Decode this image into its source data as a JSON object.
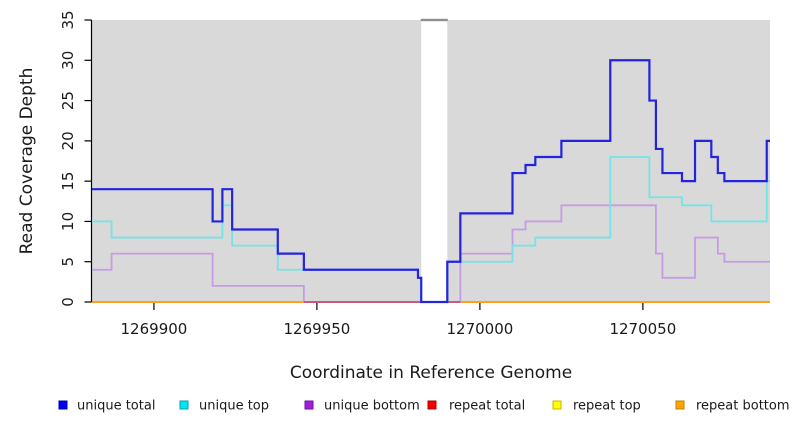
{
  "chart_data": {
    "type": "line",
    "step": true,
    "title": "",
    "xlabel": "Coordinate in Reference Genome",
    "ylabel": "Read Coverage Depth",
    "xlim": [
      1269881,
      1270089
    ],
    "ylim": [
      0,
      35
    ],
    "xticks": [
      1269900,
      1269950,
      1270000,
      1270050
    ],
    "yticks": [
      0,
      5,
      10,
      15,
      20,
      25,
      30,
      35
    ],
    "grid": false,
    "legend_position": "bottom",
    "panel_bg": "#d9d9d9",
    "gap_band": {
      "x0": 1269982,
      "x1": 1269990,
      "fill": "#ffffff",
      "cap_color": "#8f8f8f"
    },
    "series": [
      {
        "name": "unique total",
        "line_color": "#2424dd",
        "legend_fill": "#0000f0",
        "legend_stroke": "#0000a8",
        "line_width": 2.2,
        "points": [
          [
            1269881,
            14
          ],
          [
            1269918,
            10
          ],
          [
            1269921,
            14
          ],
          [
            1269924,
            9
          ],
          [
            1269938,
            6
          ],
          [
            1269946,
            4
          ],
          [
            1269981,
            3
          ],
          [
            1269982,
            0
          ],
          [
            1269990,
            5
          ],
          [
            1269994,
            11
          ],
          [
            1270010,
            16
          ],
          [
            1270014,
            17
          ],
          [
            1270017,
            18
          ],
          [
            1270025,
            20
          ],
          [
            1270040,
            30
          ],
          [
            1270052,
            25
          ],
          [
            1270054,
            19
          ],
          [
            1270056,
            16
          ],
          [
            1270062,
            15
          ],
          [
            1270066,
            20
          ],
          [
            1270071,
            18
          ],
          [
            1270073,
            16
          ],
          [
            1270075,
            15
          ],
          [
            1270088,
            20
          ]
        ]
      },
      {
        "name": "unique top",
        "line_color": "#74e4e6",
        "legend_fill": "#00e6f0",
        "legend_stroke": "#00a3b4",
        "line_width": 1.8,
        "points": [
          [
            1269881,
            10
          ],
          [
            1269887,
            8
          ],
          [
            1269921,
            12
          ],
          [
            1269924,
            7
          ],
          [
            1269938,
            4
          ],
          [
            1269981,
            3
          ],
          [
            1269982,
            0
          ],
          [
            1269990,
            5
          ],
          [
            1270010,
            7
          ],
          [
            1270017,
            8
          ],
          [
            1270040,
            18
          ],
          [
            1270052,
            13
          ],
          [
            1270062,
            12
          ],
          [
            1270071,
            10
          ],
          [
            1270088,
            15
          ]
        ]
      },
      {
        "name": "unique bottom",
        "line_color": "#c59ce4",
        "legend_fill": "#9e1fd8",
        "legend_stroke": "#7412a4",
        "line_width": 1.8,
        "points": [
          [
            1269881,
            4
          ],
          [
            1269887,
            6
          ],
          [
            1269918,
            2
          ],
          [
            1269946,
            0
          ],
          [
            1269994,
            6
          ],
          [
            1270010,
            9
          ],
          [
            1270014,
            10
          ],
          [
            1270025,
            12
          ],
          [
            1270054,
            6
          ],
          [
            1270056,
            3
          ],
          [
            1270066,
            8
          ],
          [
            1270073,
            6
          ],
          [
            1270075,
            5
          ]
        ]
      },
      {
        "name": "repeat total",
        "line_color": "#e00000",
        "legend_fill": "#f00000",
        "legend_stroke": "#b40000",
        "line_width": 1.5,
        "points": [
          [
            1269881,
            0
          ]
        ]
      },
      {
        "name": "repeat top",
        "line_color": "#f5f500",
        "legend_fill": "#ffff00",
        "legend_stroke": "#c8b400",
        "line_width": 1.5,
        "points": [
          [
            1269881,
            0
          ]
        ]
      },
      {
        "name": "repeat bottom",
        "line_color": "#ff9f1e",
        "legend_fill": "#ffa500",
        "legend_stroke": "#c87d00",
        "line_width": 2,
        "points": [
          [
            1269881,
            0
          ]
        ]
      }
    ],
    "overlay_segments": [
      {
        "x0": 1269946,
        "x1": 1269982,
        "v": 0,
        "color": "#c75b7d",
        "width": 2
      },
      {
        "x0": 1269990,
        "x1": 1269994,
        "v": 0,
        "color": "#c75b7d",
        "width": 2
      }
    ],
    "draw_order": [
      4,
      3,
      5,
      2,
      "overlays",
      1,
      0
    ]
  }
}
